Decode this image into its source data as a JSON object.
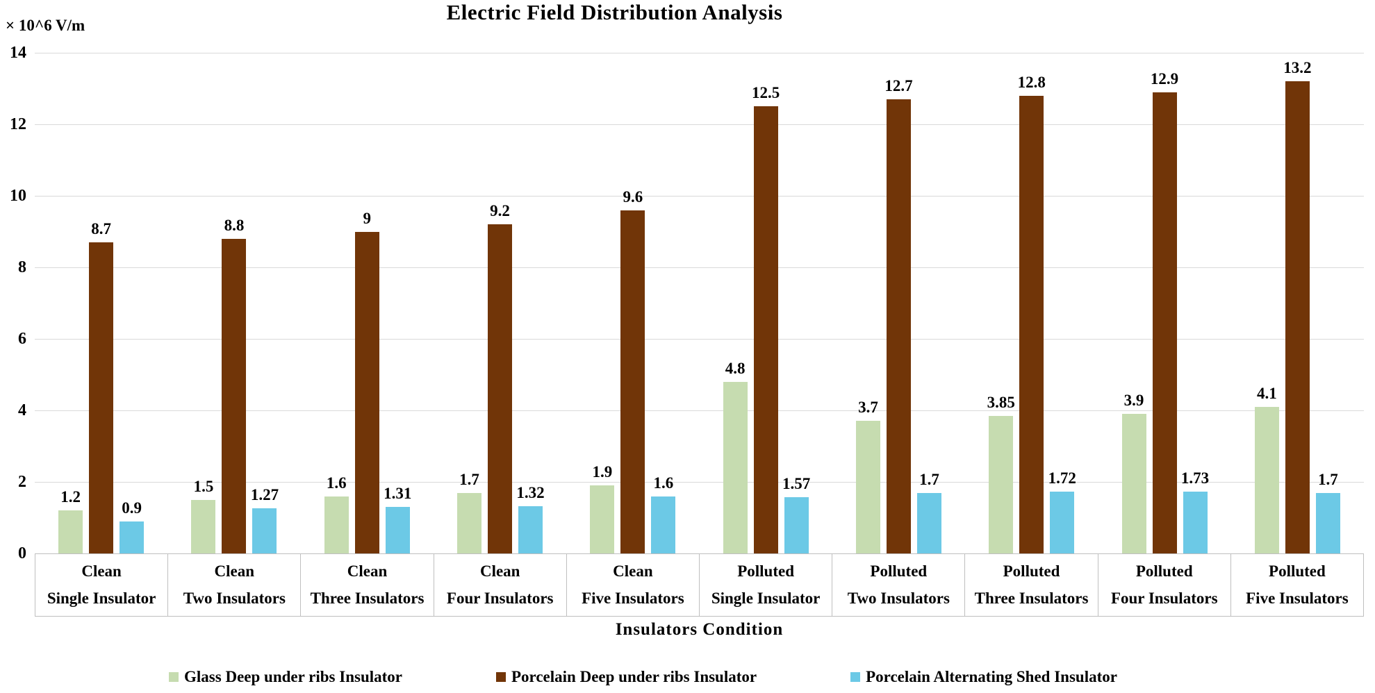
{
  "chart_data": {
    "type": "bar",
    "title": "Electric Field Distribution Analysis",
    "ylabel": "× 10^6 V/m",
    "xlabel": "Insulators Condition",
    "ylim": [
      0,
      14
    ],
    "yticks": [
      0,
      2,
      4,
      6,
      8,
      10,
      12,
      14
    ],
    "grid": true,
    "legend_position": "bottom",
    "categories": [
      {
        "line1": "Clean",
        "line2": "Single Insulator"
      },
      {
        "line1": "Clean",
        "line2": "Two Insulators"
      },
      {
        "line1": "Clean",
        "line2": "Three Insulators"
      },
      {
        "line1": "Clean",
        "line2": "Four Insulators"
      },
      {
        "line1": "Clean",
        "line2": "Five Insulators"
      },
      {
        "line1": "Polluted",
        "line2": "Single Insulator"
      },
      {
        "line1": "Polluted",
        "line2": "Two Insulators"
      },
      {
        "line1": "Polluted",
        "line2": "Three Insulators"
      },
      {
        "line1": "Polluted",
        "line2": "Four Insulators"
      },
      {
        "line1": "Polluted",
        "line2": "Five Insulators"
      }
    ],
    "series": [
      {
        "name": "Glass Deep under ribs Insulator",
        "color": "#c6dcb0",
        "values": [
          1.2,
          1.5,
          1.6,
          1.7,
          1.9,
          4.8,
          3.7,
          3.85,
          3.9,
          4.1
        ],
        "labels": [
          "1.2",
          "1.5",
          "1.6",
          "1.7",
          "1.9",
          "4.8",
          "3.7",
          "3.85",
          "3.9",
          "4.1"
        ]
      },
      {
        "name": "Porcelain Deep under ribs Insulator",
        "color": "#713508",
        "values": [
          8.7,
          8.8,
          9,
          9.2,
          9.6,
          12.5,
          12.7,
          12.8,
          12.9,
          13.2
        ],
        "labels": [
          "8.7",
          "8.8",
          "9",
          "9.2",
          "9.6",
          "12.5",
          "12.7",
          "12.8",
          "12.9",
          "13.2"
        ]
      },
      {
        "name": "Porcelain Alternating Shed Insulator",
        "color": "#6cc9e6",
        "values": [
          0.9,
          1.27,
          1.31,
          1.32,
          1.6,
          1.57,
          1.7,
          1.72,
          1.73,
          1.7
        ],
        "labels": [
          "0.9",
          "1.27",
          "1.31",
          "1.32",
          "1.6",
          "1.57",
          "1.7",
          "1.72",
          "1.73",
          "1.7"
        ]
      }
    ],
    "colors": {
      "gridline": "#d9d9d9",
      "axis_border": "#bfbfbf",
      "text": "#000000"
    }
  }
}
